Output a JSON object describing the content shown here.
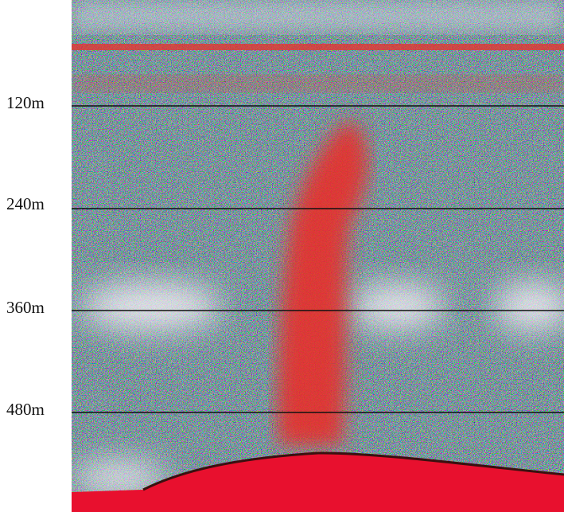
{
  "depth_labels": [
    "120m",
    "240m",
    "360m",
    "480m"
  ]
}
